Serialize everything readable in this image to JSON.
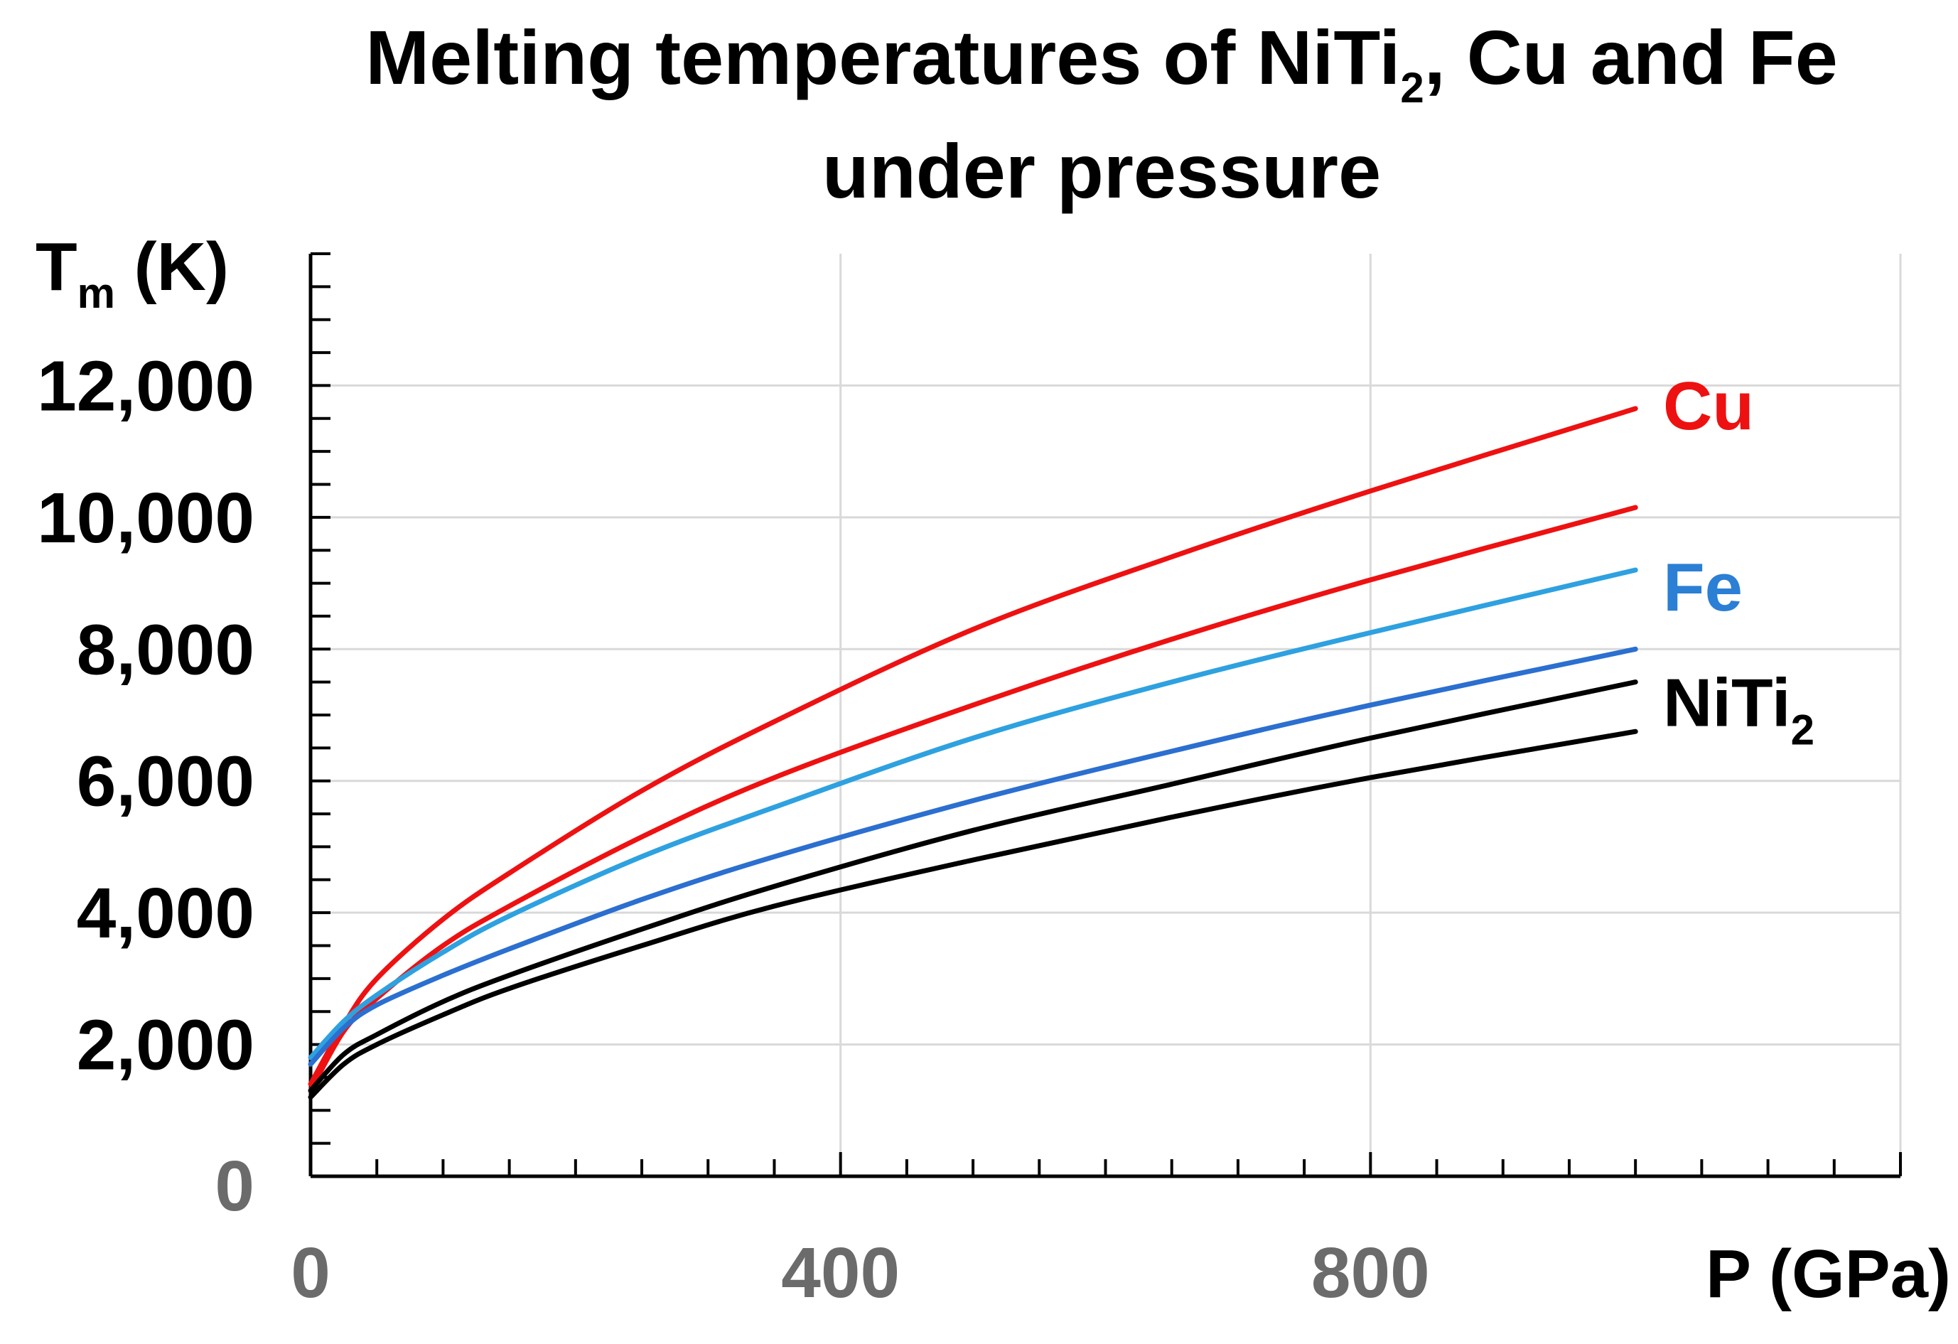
{
  "chart_data": {
    "type": "line",
    "title": {
      "line1_pre": "Melting temperatures of NiTi",
      "line1_sub": "2",
      "line1_post": ", Cu and Fe",
      "line2": "under pressure"
    },
    "ylabel": {
      "main": "T",
      "sub": "m",
      "unit": " (K)"
    },
    "xlabel": "P (GPa)",
    "xlim": [
      0,
      1200
    ],
    "ylim": [
      0,
      14000
    ],
    "y_ticks": [
      {
        "value": 0,
        "label": "0"
      },
      {
        "value": 2000,
        "label": "2,000"
      },
      {
        "value": 4000,
        "label": "4,000"
      },
      {
        "value": 6000,
        "label": "6,000"
      },
      {
        "value": 8000,
        "label": "8,000"
      },
      {
        "value": 10000,
        "label": "10,000"
      },
      {
        "value": 12000,
        "label": "12,000"
      }
    ],
    "x_ticks": [
      {
        "value": 0,
        "label": "0"
      },
      {
        "value": 400,
        "label": "400"
      },
      {
        "value": 800,
        "label": "800"
      }
    ],
    "grid": true,
    "series_labels": [
      {
        "name": "Cu",
        "text": "Cu",
        "sub": "",
        "color": "#ee1111",
        "anchor_y": 11700
      },
      {
        "name": "Fe",
        "text": "Fe",
        "sub": "",
        "color": "#2b7fd4",
        "anchor_y": 8950
      },
      {
        "name": "NiTi2",
        "text": "NiTi",
        "sub": "2",
        "color": "#000000",
        "anchor_y": 7200
      }
    ],
    "series": [
      {
        "name": "Cu upper",
        "color": "#ee1111",
        "x": [
          0,
          25,
          50,
          100,
          150,
          250,
          350,
          500,
          650,
          800,
          1000
        ],
        "y": [
          1400,
          2300,
          3000,
          3900,
          4600,
          5850,
          6900,
          8300,
          9400,
          10400,
          11650
        ]
      },
      {
        "name": "Cu lower",
        "color": "#ee1111",
        "x": [
          0,
          25,
          50,
          100,
          150,
          250,
          350,
          500,
          650,
          800,
          1000
        ],
        "y": [
          1300,
          2200,
          2700,
          3500,
          4100,
          5150,
          6050,
          7150,
          8150,
          9050,
          10150
        ]
      },
      {
        "name": "Fe upper",
        "color": "#2ea1e0",
        "x": [
          0,
          25,
          50,
          100,
          150,
          250,
          350,
          500,
          650,
          800,
          1000
        ],
        "y": [
          1800,
          2350,
          2750,
          3400,
          3950,
          4850,
          5600,
          6650,
          7500,
          8250,
          9200
        ]
      },
      {
        "name": "Fe lower",
        "color": "#2b6fd0",
        "x": [
          0,
          25,
          50,
          100,
          150,
          250,
          350,
          500,
          650,
          800,
          1000
        ],
        "y": [
          1700,
          2250,
          2600,
          3050,
          3450,
          4200,
          4850,
          5700,
          6450,
          7150,
          8000
        ]
      },
      {
        "name": "NiTi2 upper",
        "color": "#000000",
        "x": [
          0,
          25,
          50,
          100,
          150,
          250,
          350,
          500,
          650,
          800,
          1000
        ],
        "y": [
          1300,
          1850,
          2150,
          2650,
          3050,
          3750,
          4400,
          5250,
          5950,
          6650,
          7500
        ]
      },
      {
        "name": "NiTi2 lower",
        "color": "#000000",
        "x": [
          0,
          25,
          50,
          100,
          150,
          250,
          350,
          500,
          650,
          800,
          1000
        ],
        "y": [
          1200,
          1700,
          2000,
          2450,
          2850,
          3500,
          4100,
          4800,
          5450,
          6050,
          6750
        ]
      }
    ]
  }
}
